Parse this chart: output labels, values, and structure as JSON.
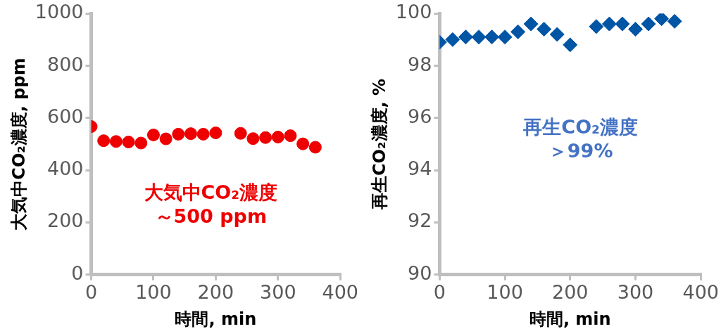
{
  "chart_data": [
    {
      "type": "scatter",
      "xlabel": "時間, min",
      "ylabel": "大気中CO₂濃度, ppm",
      "marker": "circle",
      "xlim": [
        0,
        400
      ],
      "xticks": [
        0,
        100,
        200,
        300,
        400
      ],
      "ylim": [
        0,
        1000
      ],
      "yticks": [
        0,
        200,
        400,
        600,
        800,
        1000
      ],
      "annotations": [
        "大気中CO₂濃度",
        "～500 ppm"
      ],
      "series": [
        {
          "color": "#ee0000",
          "x": [
            0,
            20,
            40,
            60,
            80,
            100,
            120,
            140,
            160,
            180,
            200,
            240,
            260,
            280,
            300,
            320,
            340,
            360
          ],
          "values": [
            567,
            513,
            510,
            508,
            504,
            535,
            520,
            538,
            540,
            538,
            543,
            541,
            521,
            525,
            527,
            532,
            501,
            488
          ]
        }
      ]
    },
    {
      "type": "scatter",
      "xlabel": "時間, min",
      "ylabel": "再生CO₂濃度, %",
      "marker": "diamond",
      "xlim": [
        0,
        400
      ],
      "xticks": [
        0,
        100,
        200,
        300,
        400
      ],
      "ylim": [
        90,
        100
      ],
      "yticks": [
        90,
        92,
        94,
        96,
        98,
        100
      ],
      "annotations": [
        "再生CO₂濃度",
        "＞99%"
      ],
      "series": [
        {
          "color": "#0055a5",
          "x": [
            0,
            20,
            40,
            60,
            80,
            100,
            120,
            140,
            160,
            180,
            200,
            240,
            260,
            280,
            300,
            320,
            340,
            360
          ],
          "values": [
            98.9,
            99.0,
            99.1,
            99.1,
            99.1,
            99.1,
            99.3,
            99.6,
            99.4,
            99.2,
            98.8,
            99.5,
            99.6,
            99.6,
            99.4,
            99.6,
            99.8,
            99.7
          ]
        }
      ]
    }
  ]
}
